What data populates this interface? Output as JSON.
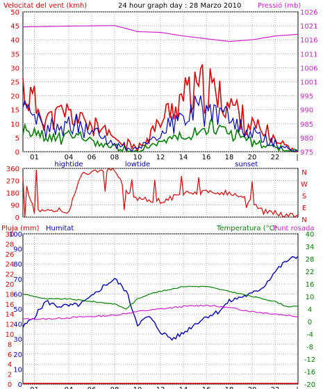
{
  "chart_data": [
    {
      "type": "line",
      "title": "24 hour graph day : 28 Marzo 2010",
      "left_axis_label": "Velocitat del vent (kmh)",
      "right_axis_label": "Pressió (mb)",
      "x_ticks": [
        "01",
        "04",
        "06",
        "08",
        "10",
        "12",
        "14",
        "16",
        "18",
        "20",
        "22"
      ],
      "x_annotations": [
        "hightide",
        "lowtide",
        "sunset"
      ],
      "left_ticks": [
        "0",
        "5",
        "10",
        "15",
        "20",
        "25",
        "30",
        "35",
        "40",
        "45",
        "50"
      ],
      "left_ylim": [
        0,
        50
      ],
      "right_ticks": [
        "975",
        "980",
        "985",
        "990",
        "995",
        "1001",
        "1006",
        "1011",
        "1016",
        "1021",
        "1026"
      ],
      "right_ylim": [
        975,
        1026
      ],
      "colors": {
        "gust": "#e00000",
        "wind": "#0000c0",
        "avg": "#008000",
        "pressure": "#d020d0",
        "grid": "#a8a8a8"
      },
      "pressure": {
        "x": [
          0,
          4,
          8,
          10,
          12,
          14,
          16,
          18,
          20,
          22,
          24
        ],
        "y": [
          1020.5,
          1020.8,
          1021.0,
          1018.8,
          1018.5,
          1017.2,
          1016.2,
          1015.2,
          1015.8,
          1017.2,
          1017.8
        ]
      },
      "wind_gust_envelope": {
        "x": [
          0,
          2,
          4,
          6,
          8,
          10,
          12,
          14,
          16,
          18,
          20,
          22,
          24
        ],
        "y": [
          30,
          16,
          18,
          13,
          6,
          1,
          14,
          27,
          30,
          23,
          12,
          6,
          0
        ]
      },
      "wind_speed_envelope": {
        "x": [
          0,
          2,
          4,
          6,
          8,
          10,
          12,
          14,
          16,
          18,
          20,
          22,
          24
        ],
        "y": [
          18,
          10,
          13,
          10,
          4,
          1,
          9,
          17,
          22,
          15,
          8,
          4,
          0
        ]
      },
      "wind_avg_envelope": {
        "x": [
          0,
          2,
          4,
          6,
          8,
          10,
          12,
          14,
          16,
          18,
          20,
          22,
          24
        ],
        "y": [
          10,
          6,
          8,
          5,
          2,
          0,
          5,
          9,
          12,
          10,
          4,
          2,
          0
        ]
      }
    },
    {
      "type": "line",
      "title": "",
      "right_axis_letters": [
        "N",
        "W",
        "S",
        "E",
        "N"
      ],
      "left_ticks": [
        "360",
        "270",
        "180",
        "90",
        "0"
      ],
      "ylim": [
        0,
        360
      ],
      "colors": {
        "direction": "#e00000"
      },
      "direction": {
        "x": [
          0,
          1,
          2,
          4,
          5,
          6,
          8,
          9,
          10,
          12,
          14,
          16,
          18,
          19,
          20,
          21,
          22,
          22.8,
          24
        ],
        "y": [
          320,
          40,
          60,
          40,
          300,
          340,
          350,
          180,
          140,
          120,
          170,
          190,
          180,
          160,
          110,
          40,
          30,
          20,
          20
        ]
      }
    },
    {
      "type": "line",
      "title": "",
      "left_axis_label_1": "Pluja (mm)",
      "left_axis_label_2": "Humitat",
      "right_axis_label": "Temperatura (°C)",
      "right_axis_label_2": "Punt rosada",
      "x_ticks": [
        "01",
        "04",
        "06",
        "08",
        "10",
        "12",
        "14",
        "16",
        "18",
        "20",
        "22"
      ],
      "x_annotations": [
        "hightide",
        "lowtide",
        "sunset"
      ],
      "rain_ticks": [
        "0",
        "2",
        "4",
        "6",
        "8",
        "10",
        "12",
        "14",
        "16",
        "18",
        "20",
        "22",
        "24",
        "26",
        "28",
        "30"
      ],
      "humidity_ticks": [
        "0",
        "10",
        "20",
        "30",
        "40",
        "50",
        "60",
        "70",
        "80",
        "90",
        "100"
      ],
      "temp_ticks": [
        "-20",
        "-16",
        "-12",
        "-8",
        "-4",
        "0",
        "4",
        "10",
        "16",
        "22",
        "28",
        "34",
        "40"
      ],
      "temp_ylim": [
        -20,
        40
      ],
      "colors": {
        "rain": "#e00000",
        "humidity": "#0000c0",
        "temperature": "#008000",
        "dewpoint": "#d020d0"
      },
      "rain": {
        "x": [
          0,
          24
        ],
        "y": [
          0,
          0
        ]
      },
      "humidity": {
        "x": [
          0,
          1,
          2,
          3,
          4,
          5,
          6,
          7,
          8,
          9,
          10,
          11,
          12,
          13,
          14,
          15,
          16,
          17,
          18,
          19,
          20,
          21,
          22,
          23,
          24
        ],
        "y": [
          38,
          45,
          55,
          52,
          52,
          53,
          58,
          65,
          70,
          62,
          40,
          45,
          35,
          30,
          34,
          40,
          45,
          48,
          55,
          58,
          60,
          65,
          75,
          82,
          85
        ]
      },
      "temperature": {
        "x": [
          0,
          2,
          4,
          6,
          8,
          9,
          10,
          11,
          12,
          13,
          14,
          16,
          18,
          19,
          20,
          21,
          22,
          23,
          24
        ],
        "y": [
          16,
          14,
          14,
          13,
          12,
          10,
          14,
          16,
          17,
          18,
          19,
          19,
          17,
          16,
          15,
          14,
          13,
          11,
          11
        ]
      },
      "dewpoint": {
        "x": [
          0,
          2,
          4,
          6,
          8,
          10,
          12,
          14,
          16,
          18,
          20,
          22,
          24
        ],
        "y": [
          6,
          6,
          6.5,
          7,
          7.5,
          9,
          10,
          11,
          11.5,
          10.5,
          9,
          8,
          7
        ]
      }
    }
  ]
}
